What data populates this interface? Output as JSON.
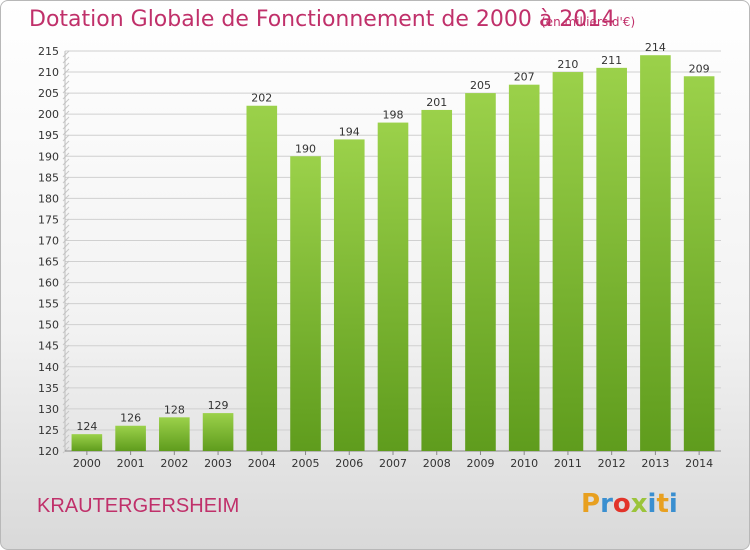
{
  "header": {
    "title": "Dotation Globale de Fonctionnement de 2000 à 2014",
    "subtitle": "(en milliers d'€)"
  },
  "footer": {
    "commune": "KRAUTERGERSHEIM",
    "logo_text": "Proxiti",
    "logo_colors": [
      "#e8a020",
      "#3a8fd0",
      "#e2342a",
      "#9bc43a",
      "#3a8fd0",
      "#e8a020",
      "#3a8fd0"
    ]
  },
  "chart_data": {
    "type": "bar",
    "categories": [
      "2000",
      "2001",
      "2002",
      "2003",
      "2004",
      "2005",
      "2006",
      "2007",
      "2008",
      "2009",
      "2010",
      "2011",
      "2012",
      "2013",
      "2014"
    ],
    "values": [
      124,
      126,
      128,
      129,
      202,
      190,
      194,
      198,
      201,
      205,
      207,
      210,
      211,
      214,
      209
    ],
    "title": "Dotation Globale de Fonctionnement de 2000 à 2014",
    "ylim": [
      120,
      215
    ],
    "yticks": [
      120,
      125,
      130,
      135,
      140,
      145,
      150,
      155,
      160,
      165,
      170,
      175,
      180,
      185,
      190,
      195,
      200,
      205,
      210,
      215
    ],
    "grid": true,
    "bar_color": "#8cc63f",
    "bar_color_dark": "#5e9a1c"
  }
}
